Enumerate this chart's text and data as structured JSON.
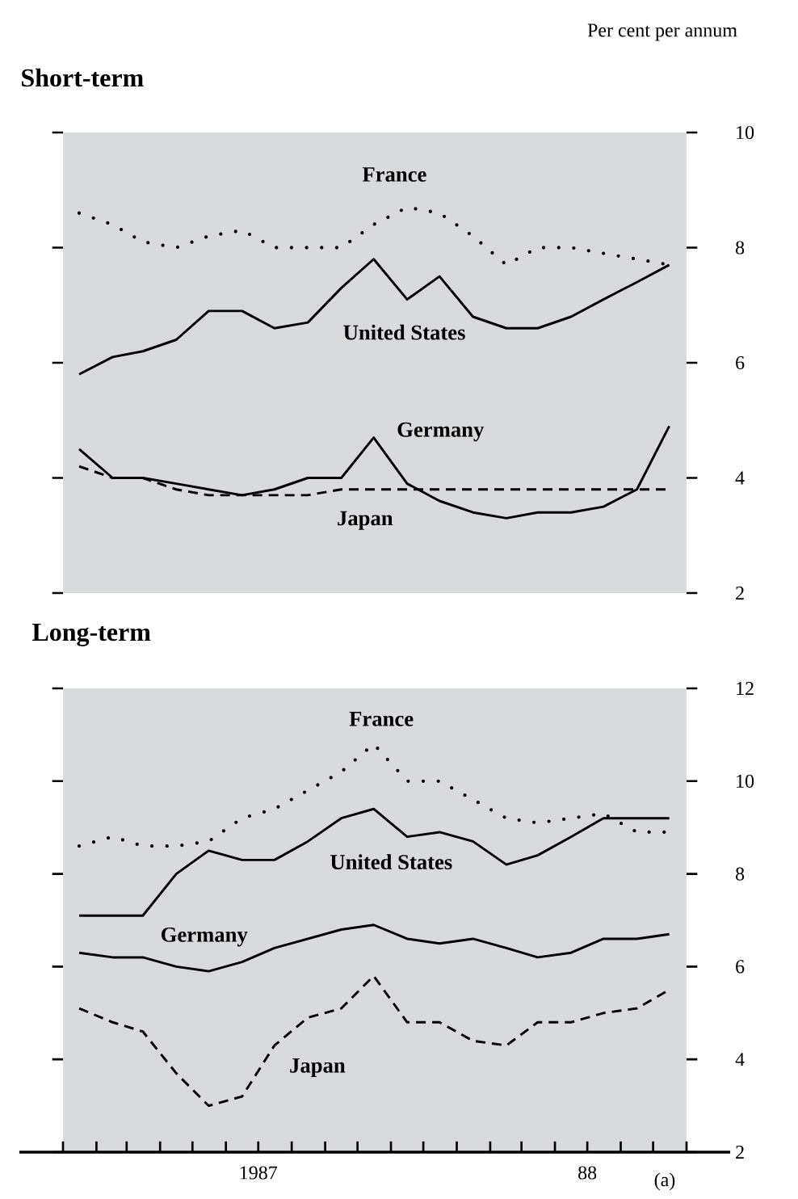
{
  "chart_data": [
    {
      "type": "line",
      "title": "Short-term",
      "ylabel": "Per cent per annum",
      "legend": false,
      "tick_labels": "y",
      "x": [
        "1987-01-16",
        "1987-02-16",
        "1987-03-16",
        "1987-04-16",
        "1987-05-16",
        "1987-06-16",
        "1987-07-16",
        "1987-08-16",
        "1987-09-16",
        "1987-10-16",
        "1987-11-16",
        "1987-12-16",
        "1988-01-16",
        "1988-02-16",
        "1988-03-16",
        "1988-04-16",
        "1988-05-16",
        "1988-06-16",
        "1988-07-16"
      ],
      "xlim": [
        "1987-01-01",
        "1988-08-01"
      ],
      "ylim": [
        2,
        10
      ],
      "yticks": [
        2,
        4,
        6,
        8,
        10
      ],
      "series": [
        {
          "name": "France",
          "color": "#000000",
          "line_style": "dotted",
          "values": [
            8.6,
            8.4,
            8.1,
            8.0,
            8.2,
            8.3,
            8.0,
            8.0,
            8.0,
            8.4,
            8.7,
            8.6,
            8.2,
            7.7,
            8.0,
            8.0,
            7.9,
            7.8,
            7.7
          ]
        },
        {
          "name": "United States",
          "color": "#000000",
          "line_style": "solid",
          "values": [
            5.8,
            6.1,
            6.2,
            6.4,
            6.9,
            6.9,
            6.6,
            6.7,
            7.3,
            7.8,
            7.1,
            7.5,
            6.8,
            6.6,
            6.6,
            6.8,
            7.1,
            7.4,
            7.7
          ]
        },
        {
          "name": "Germany",
          "color": "#000000",
          "line_style": "solid",
          "values": [
            4.5,
            4.0,
            4.0,
            3.9,
            3.8,
            3.7,
            3.8,
            4.0,
            4.0,
            4.7,
            3.9,
            3.6,
            3.4,
            3.3,
            3.4,
            3.4,
            3.5,
            3.8,
            4.9
          ]
        },
        {
          "name": "Japan",
          "color": "#000000",
          "line_style": "dashed",
          "values": [
            4.2,
            4.0,
            4.0,
            3.8,
            3.7,
            3.7,
            3.7,
            3.7,
            3.8,
            3.8,
            3.8,
            3.8,
            3.8,
            3.8,
            3.8,
            3.8,
            3.8,
            3.8,
            3.8
          ]
        }
      ]
    },
    {
      "type": "line",
      "title": "Long-term",
      "legend": false,
      "annotations": [
        "(a)"
      ],
      "x": [
        "1987-01-16",
        "1987-02-16",
        "1987-03-16",
        "1987-04-16",
        "1987-05-16",
        "1987-06-16",
        "1987-07-16",
        "1987-08-16",
        "1987-09-16",
        "1987-10-16",
        "1987-11-16",
        "1987-12-16",
        "1988-01-16",
        "1988-02-16",
        "1988-03-16",
        "1988-04-16",
        "1988-05-16",
        "1988-06-16",
        "1988-07-16"
      ],
      "xlim": [
        "1987-01-01",
        "1988-08-01"
      ],
      "xticks": [
        {
          "value": "1987-01-01",
          "label": null
        },
        {
          "value": "1987-02-01",
          "label": null
        },
        {
          "value": "1987-03-01",
          "label": null
        },
        {
          "value": "1987-04-01",
          "label": null
        },
        {
          "value": "1987-05-01",
          "label": null
        },
        {
          "value": "1987-06-01",
          "label": null
        },
        {
          "value": "1987-07-01",
          "label": "1987"
        },
        {
          "value": "1987-08-01",
          "label": null
        },
        {
          "value": "1987-09-01",
          "label": null
        },
        {
          "value": "1987-10-01",
          "label": null
        },
        {
          "value": "1987-11-01",
          "label": null
        },
        {
          "value": "1987-12-01",
          "label": null
        },
        {
          "value": "1988-01-01",
          "label": null
        },
        {
          "value": "1988-02-01",
          "label": null
        },
        {
          "value": "1988-03-01",
          "label": null
        },
        {
          "value": "1988-04-01",
          "label": null
        },
        {
          "value": "1988-05-01",
          "label": "88"
        },
        {
          "value": "1988-06-01",
          "label": null
        },
        {
          "value": "1988-07-01",
          "label": null
        },
        {
          "value": "1988-08-01",
          "label": null
        }
      ],
      "ylim": [
        2,
        12
      ],
      "yticks": [
        2,
        4,
        6,
        8,
        10,
        12
      ],
      "series": [
        {
          "name": "France",
          "color": "#000000",
          "line_style": "dotted",
          "values": [
            8.6,
            8.8,
            8.6,
            8.6,
            8.7,
            9.2,
            9.4,
            9.8,
            10.2,
            10.8,
            10.0,
            10.0,
            9.6,
            9.2,
            9.1,
            9.2,
            9.3,
            8.9,
            8.9
          ]
        },
        {
          "name": "United States",
          "color": "#000000",
          "line_style": "solid",
          "values": [
            7.1,
            7.1,
            7.1,
            8.0,
            8.5,
            8.3,
            8.3,
            8.7,
            9.2,
            9.4,
            8.8,
            8.9,
            8.7,
            8.2,
            8.4,
            8.8,
            9.2,
            9.2,
            9.2
          ]
        },
        {
          "name": "Germany",
          "color": "#000000",
          "line_style": "solid",
          "values": [
            6.3,
            6.2,
            6.2,
            6.0,
            5.9,
            6.1,
            6.4,
            6.6,
            6.8,
            6.9,
            6.6,
            6.5,
            6.6,
            6.4,
            6.2,
            6.3,
            6.6,
            6.6,
            6.7
          ]
        },
        {
          "name": "Japan",
          "color": "#000000",
          "line_style": "dashed",
          "values": [
            5.1,
            4.8,
            4.6,
            3.7,
            3.0,
            3.2,
            4.3,
            4.9,
            5.1,
            5.8,
            4.8,
            4.8,
            4.4,
            4.3,
            4.8,
            4.8,
            5.0,
            5.1,
            5.5
          ]
        }
      ]
    }
  ]
}
